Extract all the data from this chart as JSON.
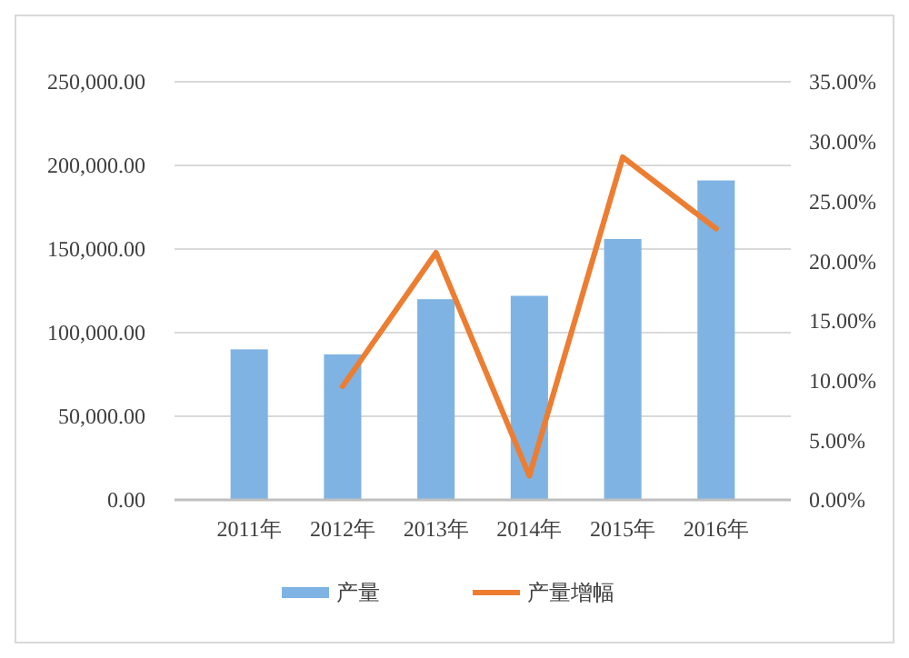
{
  "chart_data": {
    "type": "bar",
    "categories": [
      "2011年",
      "2012年",
      "2013年",
      "2014年",
      "2015年",
      "2016年"
    ],
    "series": [
      {
        "name": "产量",
        "color": "#7fb3e3",
        "values": [
          90000,
          87000,
          120000,
          122000,
          156000,
          191000
        ]
      },
      {
        "name": "产量增幅",
        "type": "line",
        "axis": "y2",
        "color": "#ed7d31",
        "values": [
          null,
          9.5,
          20.7,
          2.0,
          28.7,
          22.7
        ]
      }
    ],
    "ylim": [
      0,
      250000
    ],
    "yticks": [
      {
        "value": 0,
        "label": "0.00"
      },
      {
        "value": 50000,
        "label": "50,000.00"
      },
      {
        "value": 100000,
        "label": "100,000.00"
      },
      {
        "value": 150000,
        "label": "150,000.00"
      },
      {
        "value": 200000,
        "label": "200,000.00"
      },
      {
        "value": 250000,
        "label": "250,000.00"
      }
    ],
    "y2lim": [
      0,
      35
    ],
    "y2ticks": [
      {
        "value": 0,
        "label": "0.00%"
      },
      {
        "value": 5,
        "label": "5.00%"
      },
      {
        "value": 10,
        "label": "10.00%"
      },
      {
        "value": 15,
        "label": "15.00%"
      },
      {
        "value": 20,
        "label": "20.00%"
      },
      {
        "value": 25,
        "label": "25.00%"
      },
      {
        "value": 30,
        "label": "30.00%"
      },
      {
        "value": 35,
        "label": "35.00%"
      }
    ],
    "grid": "y",
    "legend": "bottom",
    "marker": "none",
    "line_style": "solid"
  }
}
